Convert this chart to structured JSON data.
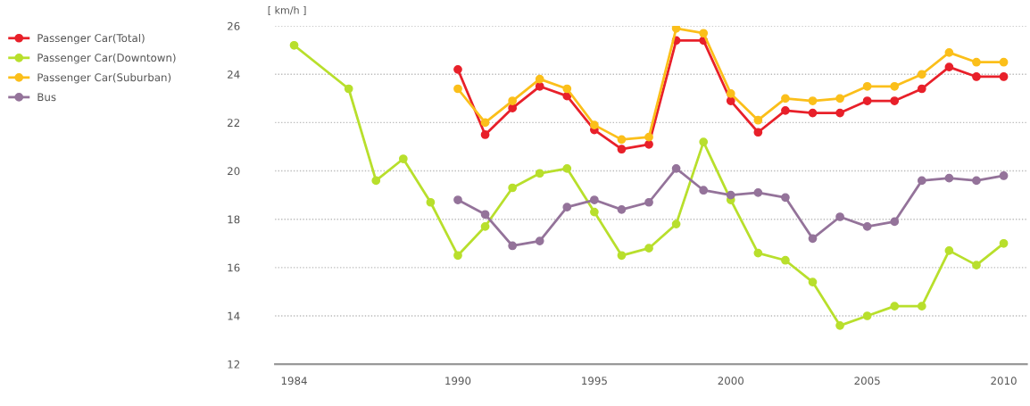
{
  "chart_data": {
    "type": "line",
    "ylabel": "[ km/h ]",
    "x": [
      1990,
      1991,
      1992,
      1993,
      1994,
      1995,
      1996,
      1997,
      1998,
      1999,
      2000,
      2001,
      2002,
      2003,
      2004,
      2005,
      2006,
      2007,
      2008,
      2009,
      2010
    ],
    "series": [
      {
        "name": "Passenger Car(Total)",
        "color": "#e8202a",
        "values": [
          24.2,
          21.5,
          22.6,
          23.5,
          23.1,
          21.7,
          20.9,
          21.1,
          25.4,
          25.4,
          22.9,
          21.6,
          22.5,
          22.4,
          22.4,
          22.9,
          22.9,
          23.4,
          24.3,
          23.9,
          23.9
        ]
      },
      {
        "name": "Passenger Car(Downtown)",
        "color": "#b8df2c",
        "x": [
          1984,
          1986,
          1987,
          1988,
          1989,
          1990,
          1991,
          1992,
          1993,
          1994,
          1995,
          1996,
          1997,
          1998,
          1999,
          2000,
          2001,
          2002,
          2003,
          2004,
          2005,
          2006,
          2007,
          2008,
          2009,
          2010
        ],
        "values": [
          25.2,
          23.4,
          19.6,
          20.5,
          18.7,
          16.5,
          17.7,
          19.3,
          19.9,
          20.1,
          18.3,
          16.5,
          16.8,
          17.8,
          21.2,
          18.8,
          16.6,
          16.3,
          15.4,
          13.6,
          14.0,
          14.4,
          14.4,
          16.7,
          16.1,
          17.0
        ]
      },
      {
        "name": "Passenger Car(Suburban)",
        "color": "#fbbf1a",
        "values": [
          23.4,
          22.0,
          22.9,
          23.8,
          23.4,
          21.9,
          21.3,
          21.4,
          25.9,
          25.7,
          23.2,
          22.1,
          23.0,
          22.9,
          23.0,
          23.5,
          23.5,
          24.0,
          24.9,
          24.5,
          24.5
        ]
      },
      {
        "name": "Bus",
        "color": "#94739a",
        "values": [
          18.8,
          18.2,
          16.9,
          17.1,
          18.5,
          18.8,
          18.4,
          18.7,
          20.1,
          19.2,
          19.0,
          19.1,
          18.9,
          17.2,
          18.1,
          17.7,
          17.9,
          19.6,
          19.7,
          19.6,
          19.8
        ]
      }
    ],
    "xlim": [
      1983.3,
      2010.85
    ],
    "xticks": [
      1984,
      1990,
      1995,
      2000,
      2005,
      2010
    ],
    "ylim": [
      12,
      26
    ],
    "yticks": [
      12,
      14,
      16,
      18,
      20,
      22,
      24,
      26
    ],
    "grid": "y",
    "legend": "top left",
    "marker": "circle",
    "line_style": "solid"
  }
}
